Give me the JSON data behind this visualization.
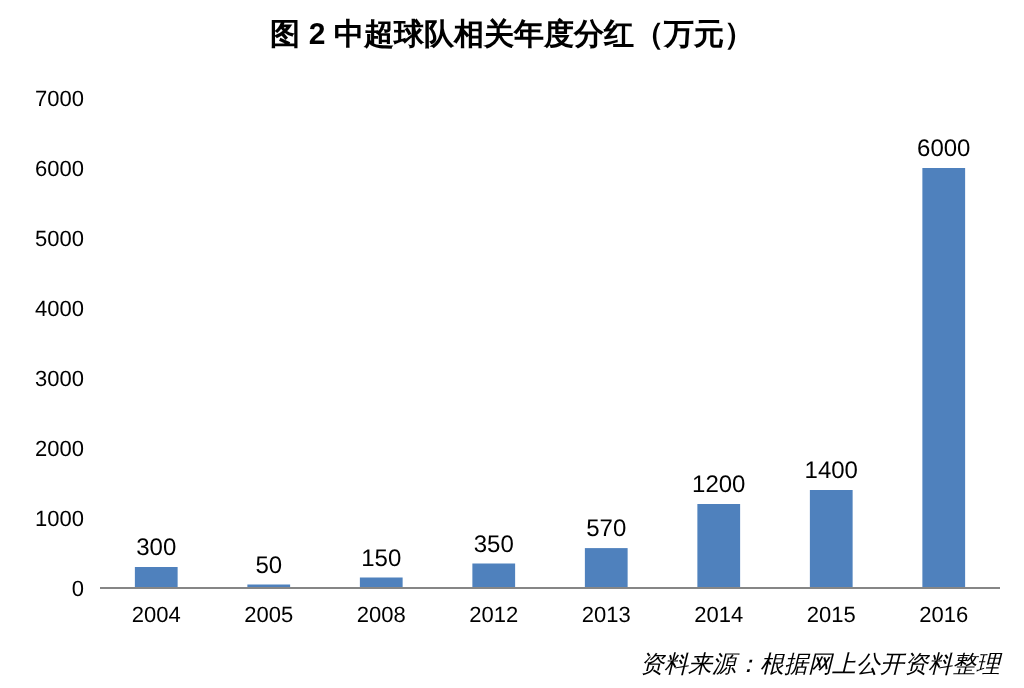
{
  "chart_data": {
    "type": "bar",
    "title": "图 2  中超球队相关年度分红（万元）",
    "categories": [
      "2004",
      "2005",
      "2008",
      "2012",
      "2013",
      "2014",
      "2015",
      "2016"
    ],
    "values": [
      300,
      50,
      150,
      350,
      570,
      1200,
      1400,
      6000
    ],
    "color": "#4f81bd",
    "ylim": [
      0,
      7000
    ],
    "yticks": [
      0,
      1000,
      2000,
      3000,
      4000,
      5000,
      6000,
      7000
    ],
    "data_labels": true,
    "grid": false,
    "annotations": [
      "资料来源：根据网上公开资料整理"
    ]
  }
}
